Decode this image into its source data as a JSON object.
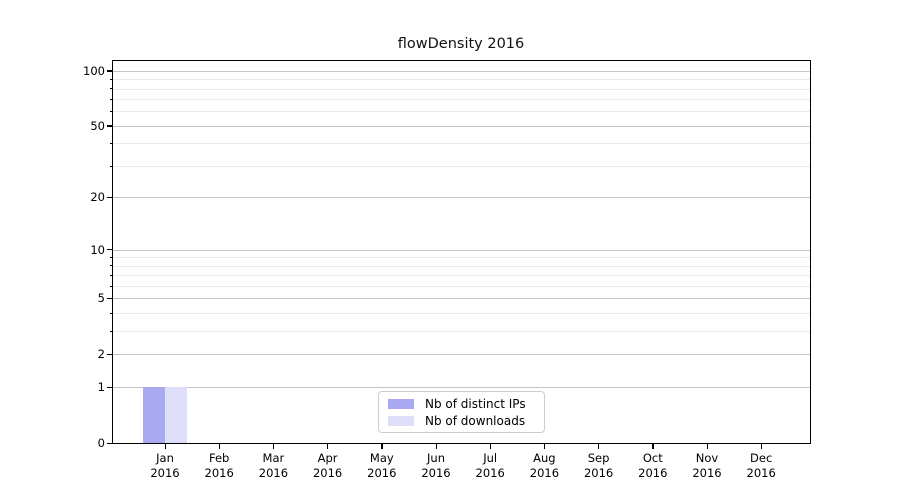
{
  "chart_data": {
    "type": "bar",
    "title": "flowDensity 2016",
    "categories": [
      {
        "month": "Jan",
        "year": "2016"
      },
      {
        "month": "Feb",
        "year": "2016"
      },
      {
        "month": "Mar",
        "year": "2016"
      },
      {
        "month": "Apr",
        "year": "2016"
      },
      {
        "month": "May",
        "year": "2016"
      },
      {
        "month": "Jun",
        "year": "2016"
      },
      {
        "month": "Jul",
        "year": "2016"
      },
      {
        "month": "Aug",
        "year": "2016"
      },
      {
        "month": "Sep",
        "year": "2016"
      },
      {
        "month": "Oct",
        "year": "2016"
      },
      {
        "month": "Nov",
        "year": "2016"
      },
      {
        "month": "Dec",
        "year": "2016"
      }
    ],
    "series": [
      {
        "name": "Nb of distinct IPs",
        "color": "#a9a9f2",
        "values": [
          1,
          0,
          0,
          0,
          0,
          0,
          0,
          0,
          0,
          0,
          0,
          0
        ]
      },
      {
        "name": "Nb of downloads",
        "color": "#dedef8",
        "values": [
          1,
          0,
          0,
          0,
          0,
          0,
          0,
          0,
          0,
          0,
          0,
          0
        ]
      }
    ],
    "yscale": "log1p",
    "yticks": [
      0,
      1,
      2,
      5,
      10,
      20,
      50,
      100
    ],
    "minor_yticks": [
      3,
      4,
      6,
      7,
      8,
      9,
      30,
      40,
      60,
      70,
      80,
      90
    ],
    "ylim": [
      0,
      113
    ],
    "xlabel": "",
    "ylabel": "",
    "grid": true,
    "legend_position": "lower center"
  }
}
